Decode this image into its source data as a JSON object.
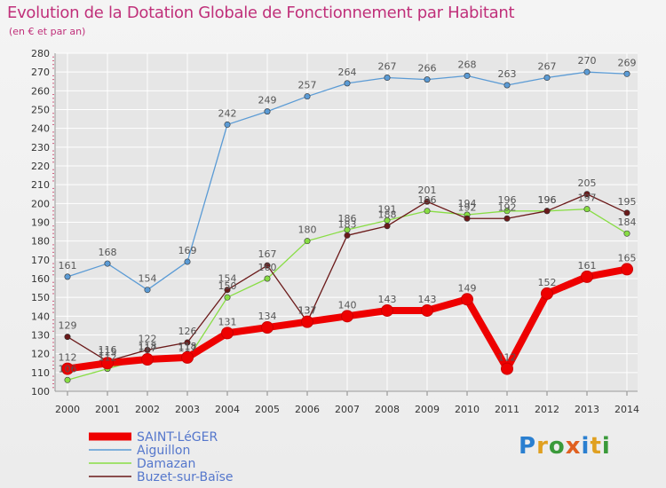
{
  "title": "Evolution de la Dotation Globale de Fonctionnement par Habitant",
  "subtitle": "(en € et par an)",
  "logo": {
    "text": "Proxiti"
  },
  "chart_data": {
    "type": "line",
    "x": [
      "2000",
      "2001",
      "2002",
      "2003",
      "2004",
      "2005",
      "2006",
      "2007",
      "2008",
      "2009",
      "2010",
      "2011",
      "2012",
      "2013",
      "2014"
    ],
    "ylim": [
      100,
      280
    ],
    "yticks": [
      100,
      110,
      120,
      130,
      140,
      150,
      160,
      170,
      180,
      190,
      200,
      210,
      220,
      230,
      240,
      250,
      260,
      270,
      280
    ],
    "grid": true,
    "legend_position": "bottom-left",
    "series": [
      {
        "name": "SAINT-LéGER",
        "color": "#ee0000",
        "emphasis": true,
        "values": [
          112,
          115,
          117,
          118,
          131,
          134,
          137,
          140,
          143,
          143,
          149,
          112,
          152,
          161,
          165
        ]
      },
      {
        "name": "Aiguillon",
        "color": "#5b9bd5",
        "values": [
          161,
          168,
          154,
          169,
          242,
          249,
          257,
          264,
          267,
          266,
          268,
          263,
          267,
          270,
          269
        ]
      },
      {
        "name": "Damazan",
        "color": "#88dd44",
        "values": [
          106,
          112,
          118,
          117,
          150,
          160,
          180,
          186,
          191,
          196,
          194,
          196,
          196,
          197,
          184
        ]
      },
      {
        "name": "Buzet-sur-Baïse",
        "color": "#6b1a1a",
        "values": [
          129,
          116,
          122,
          126,
          154,
          167,
          137,
          183,
          188,
          201,
          192,
          192,
          196,
          205,
          195
        ]
      }
    ]
  }
}
